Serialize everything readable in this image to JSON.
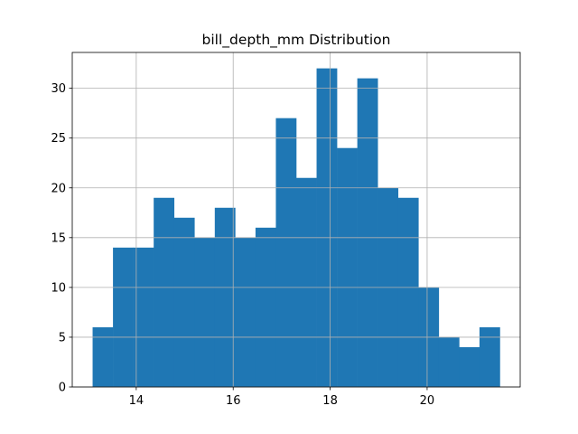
{
  "chart_data": {
    "type": "bar",
    "title": "bill_depth_mm Distribution",
    "xlabel": "",
    "ylabel": "",
    "bin_start": 13.1,
    "bin_width": 0.42,
    "counts": [
      6,
      14,
      14,
      19,
      17,
      15,
      18,
      15,
      16,
      27,
      21,
      32,
      24,
      31,
      20,
      19,
      10,
      5,
      4,
      6
    ],
    "xlim": [
      12.68,
      21.92
    ],
    "ylim": [
      0,
      33.6
    ],
    "xticks": [
      14,
      16,
      18,
      20
    ],
    "yticks": [
      0,
      5,
      10,
      15,
      20,
      25,
      30
    ],
    "grid": true,
    "colors": {
      "bar": "#1f77b4",
      "grid": "#b0b0b0"
    }
  }
}
